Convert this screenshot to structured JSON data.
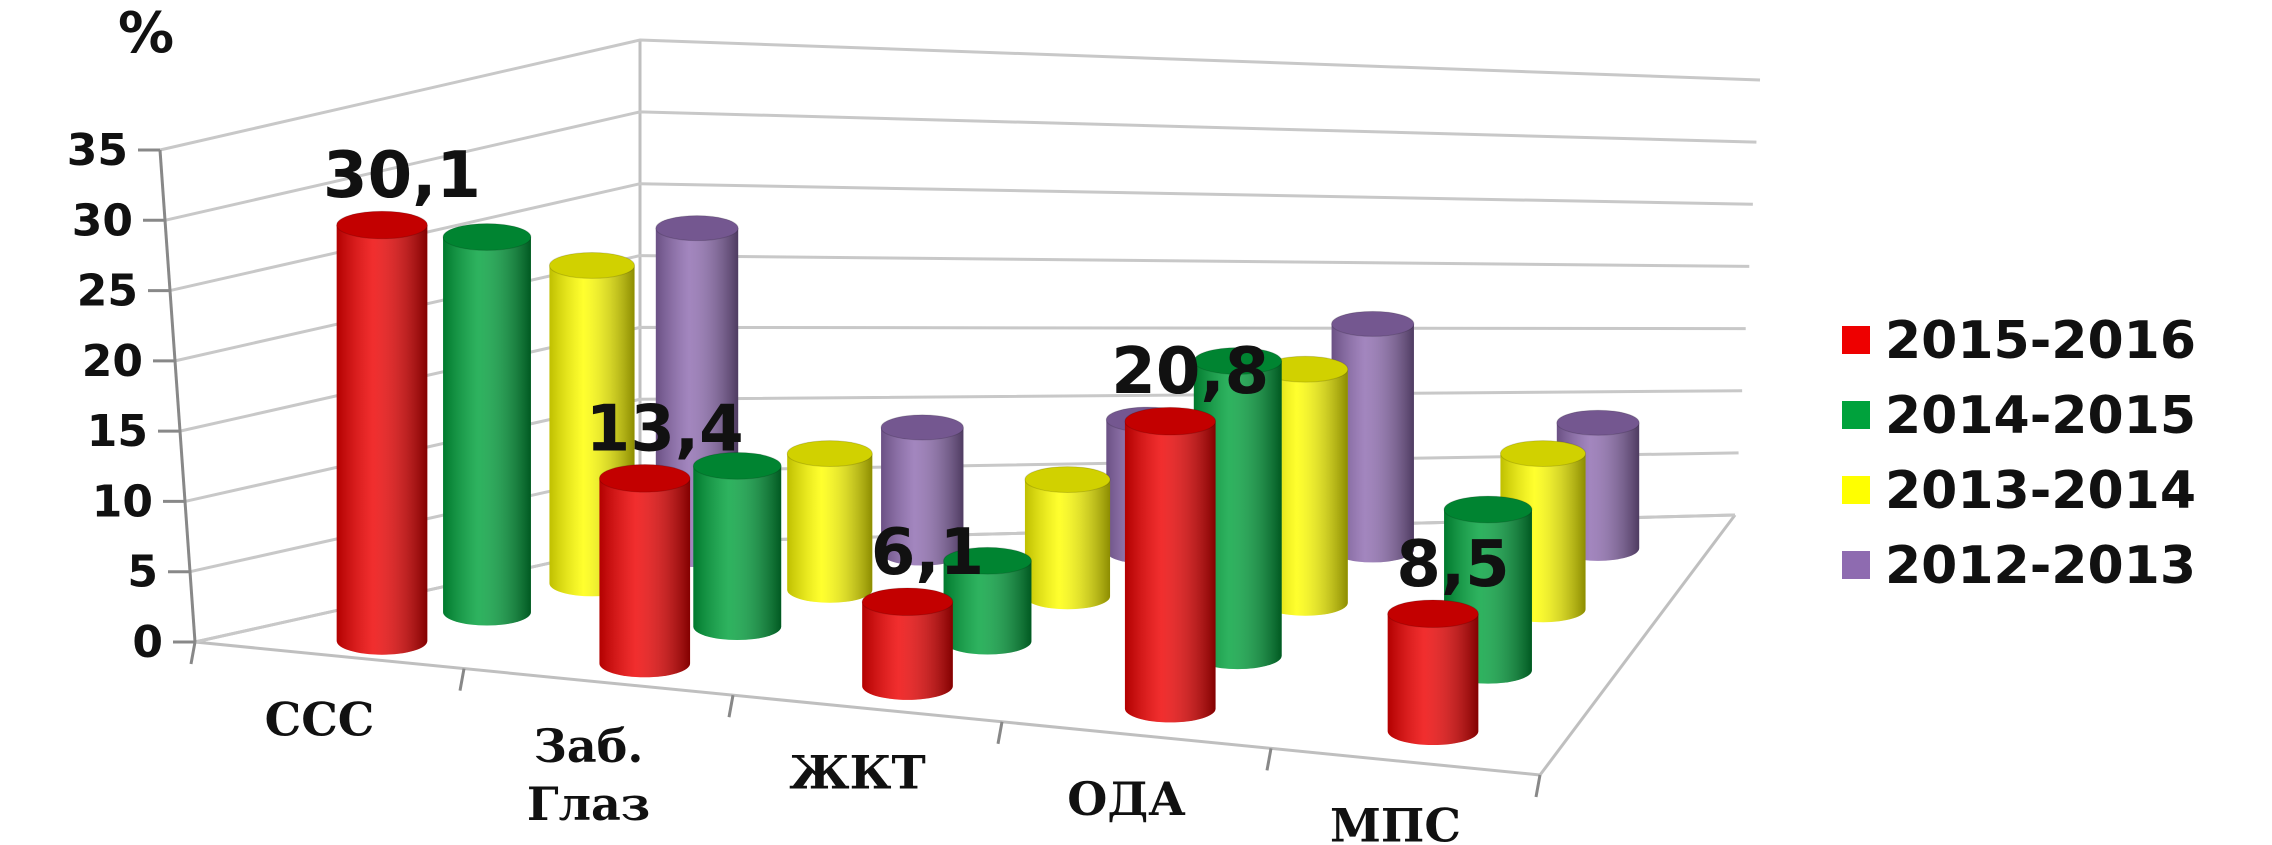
{
  "chart_data": {
    "type": "bar",
    "style": "3d-cylinder",
    "unit_label": "%",
    "categories": [
      "ССС",
      "Заб. Глаз",
      "ЖКТ",
      "ОДА",
      "МПС"
    ],
    "ylim": [
      0,
      35
    ],
    "yticks": [
      "0",
      "5",
      "10",
      "15",
      "20",
      "25",
      "30",
      "35"
    ],
    "grid": true,
    "legend_position": "right",
    "series": [
      {
        "name": "2015-2016",
        "color": "#ee0000",
        "values": [
          30.1,
          13.4,
          6.1,
          20.8,
          8.5
        ]
      },
      {
        "name": "2014-2015",
        "color": "#00a23c",
        "values": [
          28.0,
          12.0,
          6.0,
          22.0,
          12.0
        ]
      },
      {
        "name": "2013-2014",
        "color": "#ffff00",
        "values": [
          24.5,
          10.5,
          9.0,
          18.0,
          12.0
        ]
      },
      {
        "name": "2012-2013",
        "color": "#8e6bb0",
        "values": [
          26.0,
          10.0,
          10.5,
          18.0,
          10.0
        ]
      }
    ],
    "data_labels": [
      {
        "text": "30,1",
        "series": 0,
        "category": 0
      },
      {
        "text": "13,4",
        "series": 0,
        "category": 1
      },
      {
        "text": "6,1",
        "series": 0,
        "category": 2
      },
      {
        "text": "20,8",
        "series": 0,
        "category": 3
      },
      {
        "text": "8,5",
        "series": 0,
        "category": 4
      }
    ]
  }
}
